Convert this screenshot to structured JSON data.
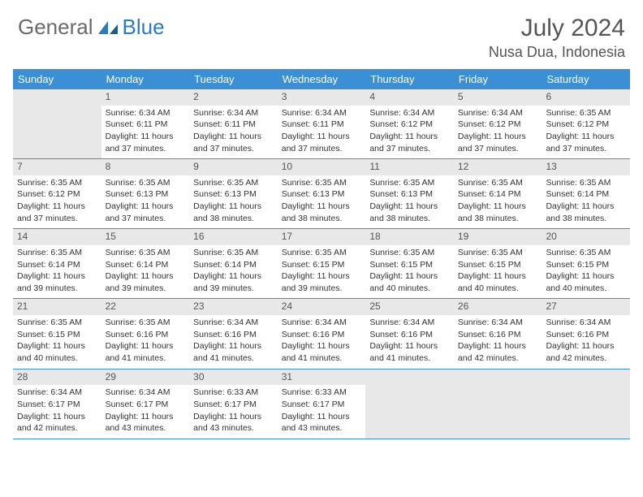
{
  "logo": {
    "text1": "General",
    "text2": "Blue"
  },
  "title": {
    "month": "July 2024",
    "location": "Nusa Dua, Indonesia"
  },
  "dayHeaders": [
    "Sunday",
    "Monday",
    "Tuesday",
    "Wednesday",
    "Thursday",
    "Friday",
    "Saturday"
  ],
  "colors": {
    "headerBg": "#3b8fd4",
    "dayNumBg": "#e8e8e8",
    "border": "#3b8fd4"
  },
  "weeks": [
    [
      {
        "blank": true
      },
      {
        "n": "1",
        "sunrise": "Sunrise: 6:34 AM",
        "sunset": "Sunset: 6:11 PM",
        "day1": "Daylight: 11 hours",
        "day2": "and 37 minutes."
      },
      {
        "n": "2",
        "sunrise": "Sunrise: 6:34 AM",
        "sunset": "Sunset: 6:11 PM",
        "day1": "Daylight: 11 hours",
        "day2": "and 37 minutes."
      },
      {
        "n": "3",
        "sunrise": "Sunrise: 6:34 AM",
        "sunset": "Sunset: 6:11 PM",
        "day1": "Daylight: 11 hours",
        "day2": "and 37 minutes."
      },
      {
        "n": "4",
        "sunrise": "Sunrise: 6:34 AM",
        "sunset": "Sunset: 6:12 PM",
        "day1": "Daylight: 11 hours",
        "day2": "and 37 minutes."
      },
      {
        "n": "5",
        "sunrise": "Sunrise: 6:34 AM",
        "sunset": "Sunset: 6:12 PM",
        "day1": "Daylight: 11 hours",
        "day2": "and 37 minutes."
      },
      {
        "n": "6",
        "sunrise": "Sunrise: 6:35 AM",
        "sunset": "Sunset: 6:12 PM",
        "day1": "Daylight: 11 hours",
        "day2": "and 37 minutes."
      }
    ],
    [
      {
        "n": "7",
        "sunrise": "Sunrise: 6:35 AM",
        "sunset": "Sunset: 6:12 PM",
        "day1": "Daylight: 11 hours",
        "day2": "and 37 minutes."
      },
      {
        "n": "8",
        "sunrise": "Sunrise: 6:35 AM",
        "sunset": "Sunset: 6:13 PM",
        "day1": "Daylight: 11 hours",
        "day2": "and 37 minutes."
      },
      {
        "n": "9",
        "sunrise": "Sunrise: 6:35 AM",
        "sunset": "Sunset: 6:13 PM",
        "day1": "Daylight: 11 hours",
        "day2": "and 38 minutes."
      },
      {
        "n": "10",
        "sunrise": "Sunrise: 6:35 AM",
        "sunset": "Sunset: 6:13 PM",
        "day1": "Daylight: 11 hours",
        "day2": "and 38 minutes."
      },
      {
        "n": "11",
        "sunrise": "Sunrise: 6:35 AM",
        "sunset": "Sunset: 6:13 PM",
        "day1": "Daylight: 11 hours",
        "day2": "and 38 minutes."
      },
      {
        "n": "12",
        "sunrise": "Sunrise: 6:35 AM",
        "sunset": "Sunset: 6:14 PM",
        "day1": "Daylight: 11 hours",
        "day2": "and 38 minutes."
      },
      {
        "n": "13",
        "sunrise": "Sunrise: 6:35 AM",
        "sunset": "Sunset: 6:14 PM",
        "day1": "Daylight: 11 hours",
        "day2": "and 38 minutes."
      }
    ],
    [
      {
        "n": "14",
        "sunrise": "Sunrise: 6:35 AM",
        "sunset": "Sunset: 6:14 PM",
        "day1": "Daylight: 11 hours",
        "day2": "and 39 minutes."
      },
      {
        "n": "15",
        "sunrise": "Sunrise: 6:35 AM",
        "sunset": "Sunset: 6:14 PM",
        "day1": "Daylight: 11 hours",
        "day2": "and 39 minutes."
      },
      {
        "n": "16",
        "sunrise": "Sunrise: 6:35 AM",
        "sunset": "Sunset: 6:14 PM",
        "day1": "Daylight: 11 hours",
        "day2": "and 39 minutes."
      },
      {
        "n": "17",
        "sunrise": "Sunrise: 6:35 AM",
        "sunset": "Sunset: 6:15 PM",
        "day1": "Daylight: 11 hours",
        "day2": "and 39 minutes."
      },
      {
        "n": "18",
        "sunrise": "Sunrise: 6:35 AM",
        "sunset": "Sunset: 6:15 PM",
        "day1": "Daylight: 11 hours",
        "day2": "and 40 minutes."
      },
      {
        "n": "19",
        "sunrise": "Sunrise: 6:35 AM",
        "sunset": "Sunset: 6:15 PM",
        "day1": "Daylight: 11 hours",
        "day2": "and 40 minutes."
      },
      {
        "n": "20",
        "sunrise": "Sunrise: 6:35 AM",
        "sunset": "Sunset: 6:15 PM",
        "day1": "Daylight: 11 hours",
        "day2": "and 40 minutes."
      }
    ],
    [
      {
        "n": "21",
        "sunrise": "Sunrise: 6:35 AM",
        "sunset": "Sunset: 6:15 PM",
        "day1": "Daylight: 11 hours",
        "day2": "and 40 minutes."
      },
      {
        "n": "22",
        "sunrise": "Sunrise: 6:35 AM",
        "sunset": "Sunset: 6:16 PM",
        "day1": "Daylight: 11 hours",
        "day2": "and 41 minutes."
      },
      {
        "n": "23",
        "sunrise": "Sunrise: 6:34 AM",
        "sunset": "Sunset: 6:16 PM",
        "day1": "Daylight: 11 hours",
        "day2": "and 41 minutes."
      },
      {
        "n": "24",
        "sunrise": "Sunrise: 6:34 AM",
        "sunset": "Sunset: 6:16 PM",
        "day1": "Daylight: 11 hours",
        "day2": "and 41 minutes."
      },
      {
        "n": "25",
        "sunrise": "Sunrise: 6:34 AM",
        "sunset": "Sunset: 6:16 PM",
        "day1": "Daylight: 11 hours",
        "day2": "and 41 minutes."
      },
      {
        "n": "26",
        "sunrise": "Sunrise: 6:34 AM",
        "sunset": "Sunset: 6:16 PM",
        "day1": "Daylight: 11 hours",
        "day2": "and 42 minutes."
      },
      {
        "n": "27",
        "sunrise": "Sunrise: 6:34 AM",
        "sunset": "Sunset: 6:16 PM",
        "day1": "Daylight: 11 hours",
        "day2": "and 42 minutes."
      }
    ],
    [
      {
        "n": "28",
        "sunrise": "Sunrise: 6:34 AM",
        "sunset": "Sunset: 6:17 PM",
        "day1": "Daylight: 11 hours",
        "day2": "and 42 minutes."
      },
      {
        "n": "29",
        "sunrise": "Sunrise: 6:34 AM",
        "sunset": "Sunset: 6:17 PM",
        "day1": "Daylight: 11 hours",
        "day2": "and 43 minutes."
      },
      {
        "n": "30",
        "sunrise": "Sunrise: 6:33 AM",
        "sunset": "Sunset: 6:17 PM",
        "day1": "Daylight: 11 hours",
        "day2": "and 43 minutes."
      },
      {
        "n": "31",
        "sunrise": "Sunrise: 6:33 AM",
        "sunset": "Sunset: 6:17 PM",
        "day1": "Daylight: 11 hours",
        "day2": "and 43 minutes."
      },
      {
        "blank": true
      },
      {
        "blank": true
      },
      {
        "blank": true
      }
    ]
  ]
}
